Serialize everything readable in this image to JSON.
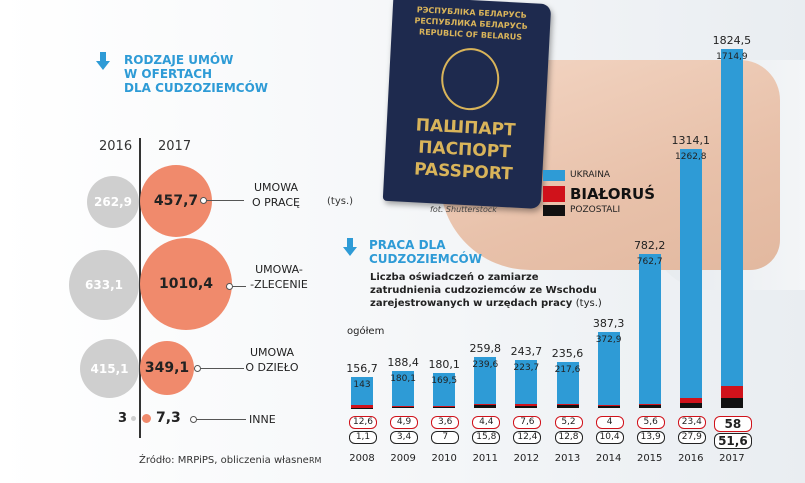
{
  "section1": {
    "title_lines": [
      "RODZAJE UMÓW",
      "W OFERTACH",
      "DLA CUDZOZIEMCÓW"
    ],
    "year_a": "2016",
    "year_b": "2017",
    "unit": "(tys.)",
    "rows": [
      {
        "label1": "UMOWA",
        "label2": "O PRACĘ",
        "v2016": "262,9",
        "v2017": "457,7"
      },
      {
        "label1": "UMOWA-",
        "label2": "-ZLECENIE",
        "v2016": "633,1",
        "v2017": "1010,4"
      },
      {
        "label1": "UMOWA",
        "label2": "O DZIEŁO",
        "v2016": "415,1",
        "v2017": "349,1"
      },
      {
        "label1": "INNE",
        "label2": "",
        "v2016": "3",
        "v2017": "7,3"
      }
    ]
  },
  "section2": {
    "title_lines": [
      "PRACA DLA",
      "CUDZOZIEMCÓW"
    ],
    "subtitle_lines": [
      "Liczba oświadczeń o zamiarze",
      "zatrudnienia cudzoziemców ze Wschodu",
      "zarejestrowanych w urzędach pracy"
    ],
    "subtitle_unit": "(tys.)",
    "total_label": "ogółem"
  },
  "legend": {
    "ukraina": "UKRAINA",
    "bialorus": "BIAŁORUŚ",
    "pozostali": "POZOSTALI"
  },
  "photo_credit": "fot. Shutterstock",
  "source": "Źródło: MRPiPS, obliczenia własne",
  "author": "RM",
  "passport": {
    "line1": "РЭСПУБЛІКА БЕЛАРУСЬ",
    "line2": "РЕСПУБЛИКА БЕЛАРУСЬ",
    "line3": "REPUBLIC OF BELARUS",
    "word1": "ПАШПАРТ",
    "word2": "ПАСПОРТ",
    "word3": "PASSPORT"
  },
  "colors": {
    "ukraina": "#2e9bd6",
    "bialorus": "#d0121b",
    "pozostali": "#111111",
    "accent": "#2e9bd6",
    "circle2017": "#f08a6c",
    "circle2016": "#cfcfcf"
  },
  "chart_data": [
    {
      "type": "bar",
      "categories": [
        "2008",
        "2009",
        "2010",
        "2011",
        "2012",
        "2013",
        "2014",
        "2015",
        "2016",
        "2017"
      ],
      "series": [
        {
          "name": "UKRAINA",
          "values": [
            143,
            180.1,
            169.5,
            239.6,
            223.7,
            217.6,
            372.9,
            762.7,
            1262.8,
            1714.9
          ]
        },
        {
          "name": "BIAŁORUŚ",
          "values": [
            12.6,
            4.9,
            3.6,
            4.4,
            7.6,
            5.2,
            4,
            5.6,
            23.4,
            58
          ]
        },
        {
          "name": "POZOSTALI",
          "values": [
            1.1,
            3.4,
            7,
            15.8,
            12.4,
            12.8,
            10.4,
            13.9,
            27.9,
            51.6
          ]
        }
      ],
      "totals": [
        156.7,
        188.4,
        180.1,
        259.8,
        243.7,
        235.6,
        387.3,
        782.2,
        1314.1,
        1824.5
      ],
      "inner_labels": [
        "143",
        "180,1",
        "169,5",
        "239,6",
        "223,7",
        "217,6",
        "372,9",
        "762,7",
        "1262,8",
        "1714,9"
      ],
      "total_labels": [
        "156,7",
        "188,4",
        "180,1",
        "259,8",
        "243,7",
        "235,6",
        "387,3",
        "782,2",
        "1314,1",
        "1824,5"
      ],
      "bialorus_labels": [
        "12,6",
        "4,9",
        "3,6",
        "4,4",
        "7,6",
        "5,2",
        "4",
        "5,6",
        "23,4",
        "58"
      ],
      "pozostali_labels": [
        "1,1",
        "3,4",
        "7",
        "15,8",
        "12,4",
        "12,8",
        "10,4",
        "13,9",
        "27,9",
        "51,6"
      ],
      "stacked": true
    },
    {
      "type": "bubble",
      "categories": [
        "UMOWA O PRACĘ",
        "UMOWA-ZLECENIE",
        "UMOWA O DZIEŁO",
        "INNE"
      ],
      "series": [
        {
          "name": "2016",
          "values": [
            262.9,
            633.1,
            415.1,
            3
          ]
        },
        {
          "name": "2017",
          "values": [
            457.7,
            1010.4,
            349.1,
            7.3
          ]
        }
      ]
    }
  ]
}
